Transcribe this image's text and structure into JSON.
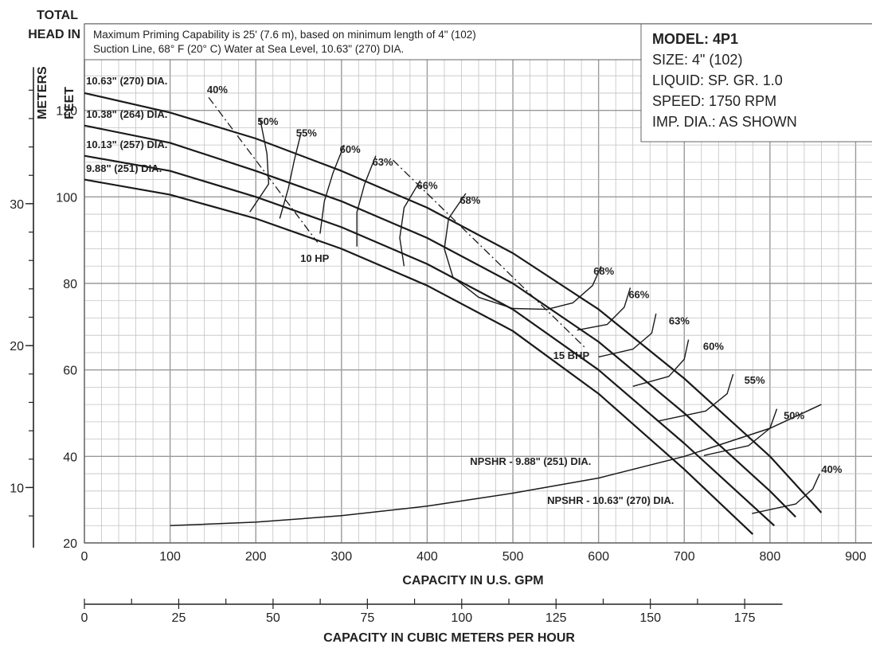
{
  "chart_data": {
    "type": "line",
    "axes": {
      "y_feet": {
        "label_line1": "TOTAL",
        "label_line2": "HEAD IN",
        "unit_label": "FEET",
        "min": 20,
        "max": 140,
        "ticks": [
          20,
          40,
          60,
          80,
          100,
          120
        ]
      },
      "y_meters": {
        "unit_label": "METERS",
        "ticks": [
          10,
          20,
          30
        ]
      },
      "x_gpm": {
        "label": "CAPACITY IN U.S. GPM",
        "min": 0,
        "max": 920,
        "ticks": [
          0,
          100,
          200,
          300,
          400,
          500,
          600,
          700,
          800,
          900
        ]
      },
      "x_m3h": {
        "label": "CAPACITY IN CUBIC METERS PER HOUR",
        "ticks": [
          0,
          25,
          50,
          75,
          100,
          125,
          150,
          175
        ]
      }
    },
    "note": {
      "line1": "Maximum Priming Capability is 25' (7.6 m), based on minimum length of 4\" (102)",
      "line2": "Suction Line, 68° F (20° C) Water at Sea Level, 10.63\" (270) DIA."
    },
    "info": {
      "model": "MODEL: 4P1",
      "size": "SIZE: 4\" (102)",
      "liquid": "LIQUID: SP. GR. 1.0",
      "speed": "SPEED: 1750 RPM",
      "imp": "IMP. DIA.: AS SHOWN"
    },
    "series": [
      {
        "name": "10.63\" (270) DIA.",
        "x": [
          0,
          100,
          200,
          300,
          400,
          500,
          600,
          700,
          800,
          860
        ],
        "y": [
          124,
          119.5,
          113.5,
          106,
          97.5,
          87,
          74,
          58,
          40,
          27
        ]
      },
      {
        "name": "10.38\" (264) DIA.",
        "x": [
          0,
          100,
          200,
          300,
          400,
          500,
          600,
          700,
          800,
          830
        ],
        "y": [
          116.5,
          112.5,
          106,
          99,
          90.5,
          80,
          66.5,
          50,
          32,
          26
        ]
      },
      {
        "name": "10.13\" (257) DIA.",
        "x": [
          0,
          100,
          200,
          300,
          400,
          500,
          600,
          700,
          805
        ],
        "y": [
          109.5,
          106,
          100,
          93,
          84.5,
          74,
          60,
          43,
          24
        ]
      },
      {
        "name": "9.88\" (251) DIA.",
        "x": [
          0,
          100,
          200,
          300,
          400,
          500,
          600,
          700,
          780
        ],
        "y": [
          104,
          100.5,
          95,
          88,
          79.5,
          69,
          54.5,
          37,
          22
        ]
      }
    ],
    "npshr": [
      {
        "name": "NPSHR - 10.63\" (270) DIA.",
        "x": [
          100,
          200,
          300,
          400,
          500,
          600,
          700,
          800,
          860
        ],
        "y": [
          24,
          24.8,
          26.3,
          28.5,
          31.5,
          35,
          40,
          46.5,
          52
        ]
      }
    ],
    "npshr_labels": [
      {
        "text": "NPSHR - 9.88\" (251) DIA.",
        "x": 450,
        "y": 38
      },
      {
        "text": "NPSHR - 10.63\" (270) DIA.",
        "x": 540,
        "y": 29
      }
    ],
    "diameter_labels": [
      {
        "text": "10.63\" (270) DIA.",
        "x": 2,
        "y": 126
      },
      {
        "text": "10.38\" (264) DIA.",
        "x": 2,
        "y": 118.3
      },
      {
        "text": "10.13\" (257) DIA.",
        "x": 2,
        "y": 111.3
      },
      {
        "text": "9.88\" (251) DIA.",
        "x": 2,
        "y": 105.8
      }
    ],
    "efficiency_labels": [
      {
        "text": "40%",
        "x": 143,
        "y": 124
      },
      {
        "text": "50%",
        "x": 202,
        "y": 116.6
      },
      {
        "text": "55%",
        "x": 247,
        "y": 114
      },
      {
        "text": "60%",
        "x": 298,
        "y": 110.2
      },
      {
        "text": "63%",
        "x": 336,
        "y": 107.2
      },
      {
        "text": "66%",
        "x": 388,
        "y": 101.8
      },
      {
        "text": "68%",
        "x": 438,
        "y": 98.4
      },
      {
        "text": "68%",
        "x": 594,
        "y": 82
      },
      {
        "text": "66%",
        "x": 635,
        "y": 76.6
      },
      {
        "text": "63%",
        "x": 682,
        "y": 70.5
      },
      {
        "text": "60%",
        "x": 722,
        "y": 64.6
      },
      {
        "text": "55%",
        "x": 770,
        "y": 56.8
      },
      {
        "text": "50%",
        "x": 816,
        "y": 48.6
      },
      {
        "text": "40%",
        "x": 860,
        "y": 36.2
      }
    ],
    "efficiency_curves": [
      {
        "name": "50%",
        "x": [
          205,
          213,
          215,
          193
        ],
        "y": [
          118,
          110,
          103,
          96.5
        ]
      },
      {
        "name": "55%",
        "x": [
          253,
          245,
          238,
          228
        ],
        "y": [
          115,
          108.5,
          102,
          95
        ]
      },
      {
        "name": "60%",
        "x": [
          303,
          290,
          280,
          275
        ],
        "y": [
          112,
          105.5,
          99,
          91.5
        ]
      },
      {
        "name": "63%",
        "x": [
          340,
          327,
          318,
          318
        ],
        "y": [
          109.5,
          103,
          96.5,
          88.5
        ]
      },
      {
        "name": "66%",
        "x": [
          392,
          373,
          368,
          373
        ],
        "y": [
          103.8,
          97.5,
          90.5,
          84
        ]
      },
      {
        "name": "68% left",
        "x": [
          445,
          425,
          420,
          430,
          460,
          500,
          540
        ],
        "y": [
          100.8,
          95,
          88,
          81.5,
          76.8,
          74.2,
          74
        ]
      },
      {
        "name": "68% right",
        "x": [
          540,
          570,
          593,
          603
        ],
        "y": [
          74,
          75.5,
          79.5,
          84
        ]
      },
      {
        "name": "66%",
        "x": [
          575,
          610,
          630,
          637
        ],
        "y": [
          69.2,
          70.5,
          74.5,
          79
        ]
      },
      {
        "name": "63%",
        "x": [
          600,
          640,
          662,
          667
        ],
        "y": [
          63,
          64.8,
          68.5,
          73
        ]
      },
      {
        "name": "60%",
        "x": [
          640,
          682,
          700,
          705
        ],
        "y": [
          56.2,
          58.5,
          62.5,
          67
        ]
      },
      {
        "name": "55%",
        "x": [
          670,
          725,
          750,
          757
        ],
        "y": [
          48.2,
          50.5,
          54.5,
          59
        ]
      },
      {
        "name": "50%",
        "x": [
          723,
          775,
          800,
          808
        ],
        "y": [
          40.2,
          42.5,
          46.5,
          51
        ]
      },
      {
        "name": "40%",
        "x": [
          779,
          830,
          850,
          858
        ],
        "y": [
          26.8,
          29,
          32.5,
          36
        ]
      }
    ],
    "bhp_lines": [
      {
        "name": "10 HP",
        "x": [
          145,
          272
        ],
        "y": [
          123,
          89.5
        ],
        "label": "10 HP",
        "lx": 252,
        "ly": 85
      },
      {
        "name": "15 BHP",
        "x": [
          360,
          585
        ],
        "y": [
          108.5,
          65
        ],
        "label": "15 BHP",
        "lx": 547,
        "ly": 62.5
      }
    ]
  }
}
